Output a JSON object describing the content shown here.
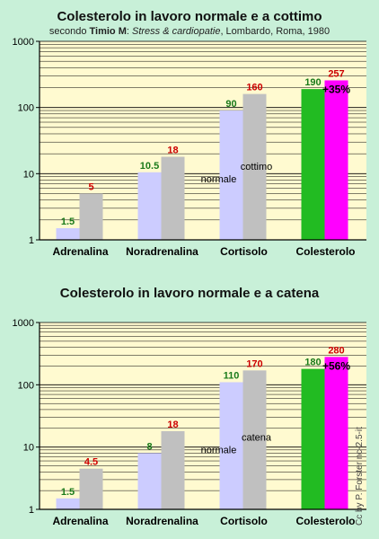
{
  "charts": [
    {
      "title": "Colesterolo in lavoro normale e a cottimo",
      "subtitle": {
        "prefix": "secondo ",
        "author": "Timio M",
        "sep": ": ",
        "work": "Stress & cardiopatie",
        "rest": ", Lombardo, Roma, 1980"
      }
    },
    {
      "title": "Colesterolo in lavoro normale e a catena"
    }
  ],
  "credit": "Cc by P. Forster nc-2.5-it",
  "colors": {
    "background": "#c8f0d8",
    "plot_background": "#fffad0",
    "normale": "#ccccff",
    "cottimo": "#c0c0c0",
    "colesterolo_normale": "#22bb22",
    "colesterolo_alto": "#ff00ff",
    "label_normale": "#1a7a1a",
    "label_alto": "#cc0000"
  },
  "chart_data": [
    {
      "type": "bar",
      "title": "Colesterolo in lavoro normale e a cottimo",
      "yscale": "log",
      "ylim": [
        1,
        1000
      ],
      "yticks": [
        "1",
        "10",
        "100",
        "1000"
      ],
      "categories": [
        "Adrenalina",
        "Noradrenalina",
        "Cortisolo",
        "Colesterolo"
      ],
      "series": [
        {
          "name": "normale",
          "values": [
            1.5,
            10.5,
            90,
            190
          ],
          "labels": [
            "1.5",
            "10.5",
            "90",
            "190"
          ]
        },
        {
          "name": "cottimo",
          "values": [
            5,
            18,
            160,
            257
          ],
          "labels": [
            "5",
            "18",
            "160",
            "257"
          ]
        }
      ],
      "annotation": "+35%",
      "grid": true
    },
    {
      "type": "bar",
      "title": "Colesterolo in lavoro normale e a catena",
      "yscale": "log",
      "ylim": [
        1,
        1000
      ],
      "yticks": [
        "1",
        "10",
        "100",
        "1000"
      ],
      "categories": [
        "Adrenalina",
        "Noradrenalina",
        "Cortisolo",
        "Colesterolo"
      ],
      "series": [
        {
          "name": "normale",
          "values": [
            1.5,
            8,
            110,
            180
          ],
          "labels": [
            "1.5",
            "8",
            "110",
            "180"
          ]
        },
        {
          "name": "catena",
          "values": [
            4.5,
            18,
            170,
            280
          ],
          "labels": [
            "4.5",
            "18",
            "170",
            "280"
          ]
        }
      ],
      "annotation": "+56%",
      "grid": true
    }
  ]
}
